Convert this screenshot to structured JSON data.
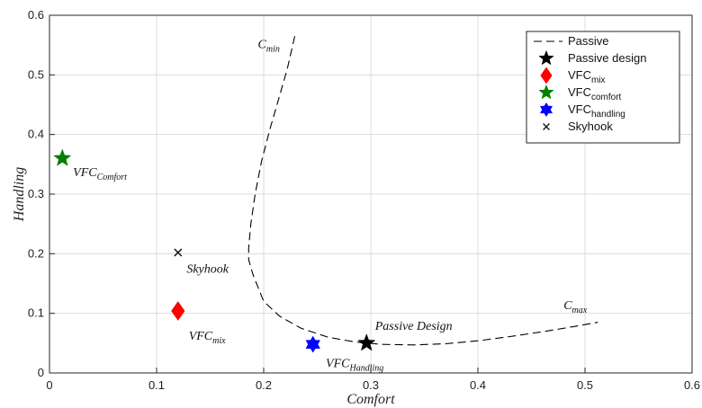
{
  "chart_data": {
    "type": "scatter",
    "xlabel": "Comfort",
    "ylabel": "Handling",
    "xlim": [
      0,
      0.6
    ],
    "ylim": [
      0,
      0.6
    ],
    "xticks": [
      "0",
      "0.1",
      "0.2",
      "0.3",
      "0.4",
      "0.5",
      "0.6"
    ],
    "yticks": [
      "0",
      "0.1",
      "0.2",
      "0.3",
      "0.4",
      "0.5",
      "0.6"
    ],
    "grid": true,
    "legend_position": "top-right",
    "colors": {
      "passive": "#000000",
      "passive_design": "#000000",
      "vfc_mix": "#ff0000",
      "vfc_comfort": "#007f00",
      "vfc_handling": "#0000ff",
      "skyhook": "#000000"
    },
    "series": [
      {
        "name": "Passive",
        "type": "line",
        "style": "dashed",
        "x": [
          0.229,
          0.222,
          0.214,
          0.206,
          0.198,
          0.192,
          0.188,
          0.186,
          0.186,
          0.19,
          0.2,
          0.215,
          0.235,
          0.26,
          0.285,
          0.31,
          0.34,
          0.37,
          0.4,
          0.43,
          0.46,
          0.49,
          0.512
        ],
        "y": [
          0.565,
          0.51,
          0.46,
          0.41,
          0.355,
          0.3,
          0.25,
          0.21,
          0.19,
          0.165,
          0.12,
          0.095,
          0.075,
          0.06,
          0.052,
          0.048,
          0.047,
          0.049,
          0.054,
          0.061,
          0.069,
          0.078,
          0.085
        ]
      },
      {
        "name": "Passive design",
        "marker": "star",
        "x": [
          0.296
        ],
        "y": [
          0.05
        ]
      },
      {
        "name": "VFC_mix",
        "legend_main": "VFC",
        "legend_sub": "mix",
        "marker": "diamond",
        "x": [
          0.12
        ],
        "y": [
          0.104
        ]
      },
      {
        "name": "VFC_comfort",
        "legend_main": "VFC",
        "legend_sub": "comfort",
        "marker": "star",
        "x": [
          0.012
        ],
        "y": [
          0.36
        ]
      },
      {
        "name": "VFC_handling",
        "legend_main": "VFC",
        "legend_sub": "handling",
        "marker": "hexagram",
        "x": [
          0.246
        ],
        "y": [
          0.048
        ]
      },
      {
        "name": "Skyhook",
        "marker": "x",
        "x": [
          0.12
        ],
        "y": [
          0.202
        ]
      }
    ],
    "annotations": [
      {
        "main": "C",
        "sub": "min",
        "x": 0.215,
        "y": 0.545,
        "anchor": "end"
      },
      {
        "main": "C",
        "sub": "max",
        "x": 0.48,
        "y": 0.107,
        "anchor": "start"
      },
      {
        "main": "Passive Design",
        "sub": "",
        "x": 0.304,
        "y": 0.072,
        "anchor": "start"
      },
      {
        "main": "VFC",
        "sub": "Comfort",
        "x": 0.022,
        "y": 0.33,
        "anchor": "start"
      },
      {
        "main": "VFC",
        "sub": "mix",
        "x": 0.13,
        "y": 0.056,
        "anchor": "start"
      },
      {
        "main": "VFC",
        "sub": "Handling",
        "x": 0.258,
        "y": 0.01,
        "anchor": "start"
      },
      {
        "main": "Skyhook",
        "sub": "",
        "x": 0.128,
        "y": 0.168,
        "anchor": "start"
      }
    ]
  }
}
